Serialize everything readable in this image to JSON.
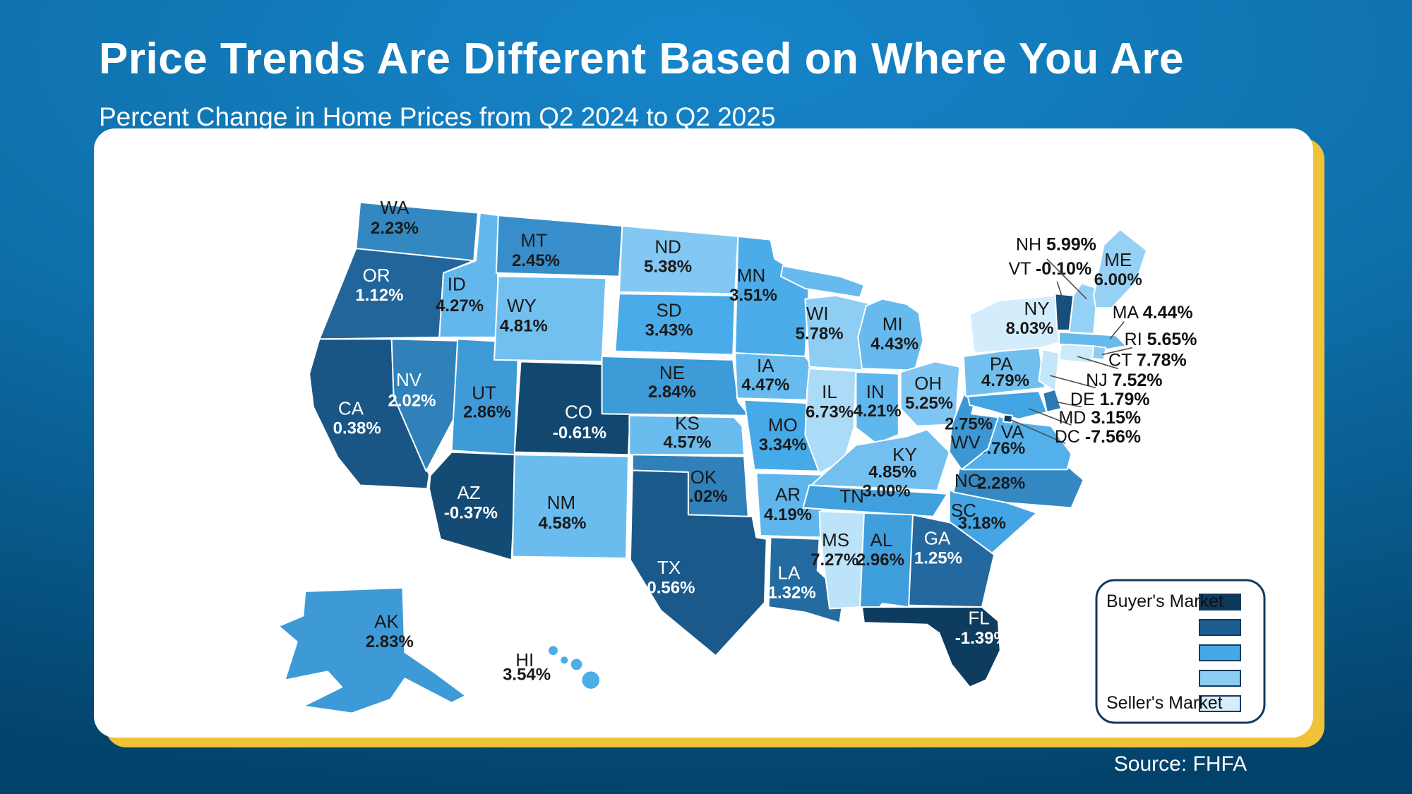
{
  "header": {
    "title": "Price Trends Are Different Based on Where You Are",
    "subtitle": "Percent Change in Home Prices from Q2 2024 to Q2 2025"
  },
  "footer": {
    "source": "Source: FHFA"
  },
  "legend": {
    "buyers_label": "Buyer's Market",
    "sellers_label": "Seller's Market"
  },
  "theme": {
    "background_top": "#1685CA",
    "background_bottom": "#02426A",
    "card_accent": "#F0C237",
    "state_border": "#FFFFFF",
    "callout_line": "#4D4D4D",
    "legend_border": "#14395E",
    "scale_anchors": [
      "#0C3A5B",
      "#1D5E92",
      "#45A9E8",
      "#8CCDF4",
      "#D6EEFC"
    ]
  },
  "chart_data": {
    "type": "choropleth",
    "title": "Price Trends Are Different Based on Where You Are",
    "subtitle": "Percent Change in Home Prices from Q2 2024 to Q2 2025",
    "source": "FHFA",
    "metric": "Percent change in home prices, Q2 2024 to Q2 2025",
    "unit": "%",
    "legend": {
      "low_end": "Buyer's Market",
      "high_end": "Seller's Market"
    },
    "color_scale": {
      "anchors": [
        "#0C3A5B",
        "#1D5E92",
        "#45A9E8",
        "#8CCDF4",
        "#D6EEFC"
      ],
      "domain": [
        -1.5,
        8.1
      ],
      "note": "darker = lower / buyer's market, lighter = higher / seller's market"
    },
    "states": [
      {
        "abbr": "WA",
        "value": 2.23
      },
      {
        "abbr": "OR",
        "value": 1.12
      },
      {
        "abbr": "CA",
        "value": 0.38
      },
      {
        "abbr": "ID",
        "value": 4.27
      },
      {
        "abbr": "NV",
        "value": 2.02
      },
      {
        "abbr": "UT",
        "value": 2.86
      },
      {
        "abbr": "AZ",
        "value": -0.37
      },
      {
        "abbr": "MT",
        "value": 2.45
      },
      {
        "abbr": "WY",
        "value": 4.81
      },
      {
        "abbr": "CO",
        "value": -0.61
      },
      {
        "abbr": "NM",
        "value": 4.58
      },
      {
        "abbr": "ND",
        "value": 5.38
      },
      {
        "abbr": "SD",
        "value": 3.43
      },
      {
        "abbr": "NE",
        "value": 2.84
      },
      {
        "abbr": "KS",
        "value": 4.57
      },
      {
        "abbr": "OK",
        "value": 2.02
      },
      {
        "abbr": "TX",
        "value": 0.56
      },
      {
        "abbr": "MN",
        "value": 3.51
      },
      {
        "abbr": "IA",
        "value": 4.47
      },
      {
        "abbr": "MO",
        "value": 3.34
      },
      {
        "abbr": "AR",
        "value": 4.19
      },
      {
        "abbr": "LA",
        "value": 1.32
      },
      {
        "abbr": "WI",
        "value": 5.78
      },
      {
        "abbr": "IL",
        "value": 6.73
      },
      {
        "abbr": "MS",
        "value": 7.27
      },
      {
        "abbr": "MI",
        "value": 4.43
      },
      {
        "abbr": "IN",
        "value": 4.21
      },
      {
        "abbr": "OH",
        "value": 5.25
      },
      {
        "abbr": "KY",
        "value": 4.85
      },
      {
        "abbr": "TN",
        "value": 3.0
      },
      {
        "abbr": "AL",
        "value": 2.96
      },
      {
        "abbr": "GA",
        "value": 1.25
      },
      {
        "abbr": "FL",
        "value": -1.39
      },
      {
        "abbr": "SC",
        "value": 3.18
      },
      {
        "abbr": "NC",
        "value": 2.28
      },
      {
        "abbr": "VA",
        "value": 3.76
      },
      {
        "abbr": "WV",
        "value": 2.75
      },
      {
        "abbr": "PA",
        "value": 4.79
      },
      {
        "abbr": "NY",
        "value": 8.03
      },
      {
        "abbr": "VT",
        "value": -0.1
      },
      {
        "abbr": "NH",
        "value": 5.99
      },
      {
        "abbr": "ME",
        "value": 6.0
      },
      {
        "abbr": "MA",
        "value": 4.44
      },
      {
        "abbr": "RI",
        "value": 5.65
      },
      {
        "abbr": "CT",
        "value": 7.78
      },
      {
        "abbr": "NJ",
        "value": 7.52
      },
      {
        "abbr": "DE",
        "value": 1.79
      },
      {
        "abbr": "MD",
        "value": 3.15
      },
      {
        "abbr": "DC",
        "value": -7.56
      },
      {
        "abbr": "AK",
        "value": 2.83
      },
      {
        "abbr": "HI",
        "value": 3.54
      }
    ]
  }
}
